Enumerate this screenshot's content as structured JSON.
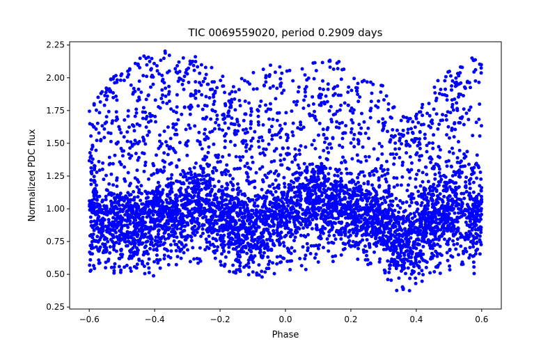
{
  "chart_data": {
    "type": "scatter",
    "title": "TIC 0069559020, period 0.2909 days",
    "xlabel": "Phase",
    "ylabel": "Normalized PDC flux",
    "xlim": [
      -0.66,
      0.66
    ],
    "ylim": [
      0.235,
      2.275
    ],
    "x_ticks": [
      -0.6,
      -0.4,
      -0.2,
      0.0,
      0.2,
      0.4,
      0.6
    ],
    "x_tick_labels": [
      "−0.6",
      "−0.4",
      "−0.2",
      "0.0",
      "0.2",
      "0.4",
      "0.6"
    ],
    "y_ticks": [
      0.25,
      0.5,
      0.75,
      1.0,
      1.25,
      1.5,
      1.75,
      2.0,
      2.25
    ],
    "y_tick_labels": [
      "0.25",
      "0.50",
      "0.75",
      "1.00",
      "1.25",
      "1.50",
      "1.75",
      "2.00",
      "2.25"
    ],
    "grid": false,
    "marker_color": "#0000ff",
    "series": [
      {
        "name": "flux",
        "phase_range": [
          -0.6,
          0.6
        ],
        "n_points": 5200,
        "envelope_phase": [
          -0.6,
          -0.55,
          -0.5,
          -0.45,
          -0.4,
          -0.35,
          -0.3,
          -0.25,
          -0.2,
          -0.15,
          -0.1,
          -0.05,
          0.0,
          0.05,
          0.1,
          0.15,
          0.2,
          0.25,
          0.3,
          0.35,
          0.4,
          0.45,
          0.5,
          0.55,
          0.6
        ],
        "envelope_upper": [
          1.75,
          1.95,
          2.1,
          2.15,
          2.2,
          2.23,
          2.18,
          2.15,
          2.02,
          1.98,
          2.05,
          2.1,
          2.1,
          2.07,
          2.15,
          2.15,
          2.12,
          2.06,
          1.95,
          1.7,
          1.75,
          1.95,
          2.05,
          2.12,
          2.2
        ],
        "envelope_lower": [
          0.42,
          0.5,
          0.5,
          0.46,
          0.45,
          0.52,
          0.57,
          0.59,
          0.55,
          0.5,
          0.49,
          0.47,
          0.45,
          0.5,
          0.56,
          0.6,
          0.6,
          0.57,
          0.5,
          0.33,
          0.4,
          0.5,
          0.48,
          0.46,
          0.47
        ],
        "core_center": [
          0.95,
          0.9,
          0.88,
          0.88,
          0.92,
          0.98,
          1.02,
          1.0,
          0.95,
          0.88,
          0.86,
          0.88,
          0.95,
          1.02,
          1.05,
          1.02,
          0.98,
          0.95,
          0.9,
          0.72,
          0.82,
          0.92,
          0.98,
          0.98,
          0.95
        ]
      }
    ]
  }
}
